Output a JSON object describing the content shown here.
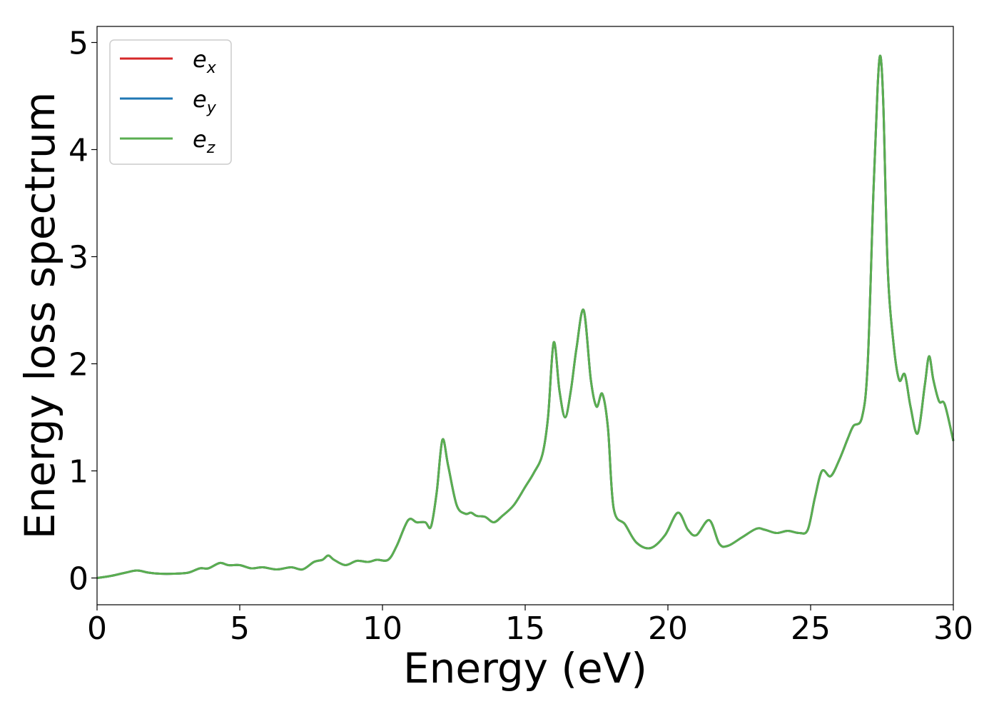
{
  "chart_data": {
    "type": "line",
    "xlabel": "Energy (eV)",
    "ylabel": "Energy loss spectrum",
    "xlim": [
      0,
      30
    ],
    "ylim": [
      -0.25,
      5.15
    ],
    "xticks": [
      0,
      5,
      10,
      15,
      20,
      25,
      30
    ],
    "yticks": [
      0,
      1,
      2,
      3,
      4,
      5
    ],
    "xtick_labels": [
      "0",
      "5",
      "10",
      "15",
      "20",
      "25",
      "30"
    ],
    "ytick_labels": [
      "0",
      "1",
      "2",
      "3",
      "4",
      "5"
    ],
    "grid": false,
    "legend_position": "top-left",
    "x": [
      0,
      0.5,
      1.0,
      1.4,
      1.8,
      2.2,
      2.7,
      3.2,
      3.6,
      3.9,
      4.3,
      4.6,
      5.0,
      5.4,
      5.8,
      6.3,
      6.8,
      7.2,
      7.6,
      7.9,
      8.1,
      8.3,
      8.7,
      9.1,
      9.5,
      9.8,
      10.2,
      10.5,
      10.9,
      11.2,
      11.5,
      11.7,
      11.9,
      12.1,
      12.3,
      12.6,
      12.9,
      13.1,
      13.3,
      13.6,
      13.9,
      14.2,
      14.6,
      15.0,
      15.3,
      15.6,
      15.8,
      16.0,
      16.2,
      16.4,
      16.6,
      16.8,
      17.05,
      17.3,
      17.5,
      17.7,
      17.9,
      18.1,
      18.5,
      18.9,
      19.4,
      19.9,
      20.35,
      20.7,
      21.0,
      21.45,
      21.8,
      22.1,
      22.6,
      23.1,
      23.4,
      23.8,
      24.2,
      24.6,
      24.9,
      25.15,
      25.4,
      25.7,
      26.0,
      26.3,
      26.5,
      26.8,
      27.0,
      27.2,
      27.35,
      27.45,
      27.55,
      27.7,
      27.9,
      28.1,
      28.3,
      28.5,
      28.75,
      29.0,
      29.15,
      29.3,
      29.5,
      29.7,
      30.0
    ],
    "series": [
      {
        "name": "e_x",
        "color": "#d62728",
        "values": [
          0,
          0.02,
          0.05,
          0.07,
          0.05,
          0.04,
          0.04,
          0.05,
          0.09,
          0.09,
          0.14,
          0.12,
          0.12,
          0.09,
          0.1,
          0.08,
          0.1,
          0.08,
          0.15,
          0.17,
          0.21,
          0.17,
          0.12,
          0.16,
          0.15,
          0.17,
          0.17,
          0.3,
          0.54,
          0.52,
          0.52,
          0.48,
          0.8,
          1.29,
          1.05,
          0.68,
          0.6,
          0.61,
          0.58,
          0.57,
          0.52,
          0.58,
          0.68,
          0.85,
          0.98,
          1.15,
          1.5,
          2.2,
          1.75,
          1.5,
          1.75,
          2.15,
          2.5,
          1.85,
          1.6,
          1.72,
          1.4,
          0.65,
          0.5,
          0.33,
          0.28,
          0.4,
          0.61,
          0.45,
          0.4,
          0.54,
          0.32,
          0.3,
          0.38,
          0.46,
          0.45,
          0.42,
          0.44,
          0.42,
          0.45,
          0.75,
          1.0,
          0.95,
          1.1,
          1.3,
          1.42,
          1.5,
          2.0,
          3.6,
          4.6,
          4.87,
          4.4,
          2.9,
          2.2,
          1.85,
          1.9,
          1.6,
          1.35,
          1.8,
          2.07,
          1.85,
          1.65,
          1.62,
          1.28
        ]
      },
      {
        "name": "e_y",
        "color": "#1f77b4",
        "values": [
          0,
          0.02,
          0.05,
          0.07,
          0.05,
          0.04,
          0.04,
          0.05,
          0.09,
          0.09,
          0.14,
          0.12,
          0.12,
          0.09,
          0.1,
          0.08,
          0.1,
          0.08,
          0.15,
          0.17,
          0.21,
          0.17,
          0.12,
          0.16,
          0.15,
          0.17,
          0.17,
          0.3,
          0.54,
          0.52,
          0.52,
          0.48,
          0.8,
          1.29,
          1.05,
          0.68,
          0.6,
          0.61,
          0.58,
          0.57,
          0.52,
          0.58,
          0.68,
          0.85,
          0.98,
          1.15,
          1.5,
          2.2,
          1.75,
          1.5,
          1.75,
          2.15,
          2.5,
          1.85,
          1.6,
          1.72,
          1.4,
          0.65,
          0.5,
          0.33,
          0.28,
          0.4,
          0.61,
          0.45,
          0.4,
          0.54,
          0.32,
          0.3,
          0.38,
          0.46,
          0.45,
          0.42,
          0.44,
          0.42,
          0.45,
          0.75,
          1.0,
          0.95,
          1.1,
          1.3,
          1.42,
          1.5,
          2.0,
          3.6,
          4.6,
          4.87,
          4.4,
          2.9,
          2.2,
          1.85,
          1.9,
          1.6,
          1.35,
          1.8,
          2.07,
          1.85,
          1.65,
          1.62,
          1.28
        ]
      },
      {
        "name": "e_z",
        "color": "#5aae50",
        "values": [
          0,
          0.02,
          0.05,
          0.07,
          0.05,
          0.04,
          0.04,
          0.05,
          0.09,
          0.09,
          0.14,
          0.12,
          0.12,
          0.09,
          0.1,
          0.08,
          0.1,
          0.08,
          0.15,
          0.17,
          0.21,
          0.17,
          0.12,
          0.16,
          0.15,
          0.17,
          0.17,
          0.3,
          0.54,
          0.52,
          0.52,
          0.48,
          0.8,
          1.29,
          1.05,
          0.68,
          0.6,
          0.61,
          0.58,
          0.57,
          0.52,
          0.58,
          0.68,
          0.85,
          0.98,
          1.15,
          1.5,
          2.2,
          1.75,
          1.5,
          1.75,
          2.15,
          2.5,
          1.85,
          1.6,
          1.72,
          1.4,
          0.65,
          0.5,
          0.33,
          0.28,
          0.4,
          0.61,
          0.45,
          0.4,
          0.54,
          0.32,
          0.3,
          0.38,
          0.46,
          0.45,
          0.42,
          0.44,
          0.42,
          0.45,
          0.75,
          1.0,
          0.95,
          1.1,
          1.3,
          1.42,
          1.5,
          2.0,
          3.6,
          4.6,
          4.87,
          4.4,
          2.9,
          2.2,
          1.85,
          1.9,
          1.6,
          1.35,
          1.8,
          2.07,
          1.85,
          1.65,
          1.62,
          1.28
        ]
      }
    ]
  },
  "legend": {
    "items": [
      {
        "base": "e",
        "sub": "x",
        "color": "#d62728"
      },
      {
        "base": "e",
        "sub": "y",
        "color": "#1f77b4"
      },
      {
        "base": "e",
        "sub": "z",
        "color": "#5aae50"
      }
    ]
  }
}
